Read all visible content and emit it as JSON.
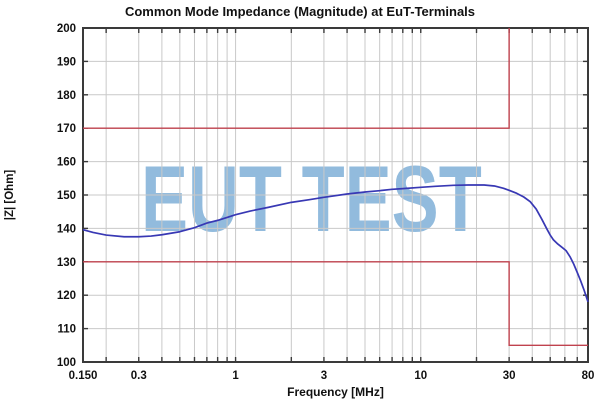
{
  "watermark": {
    "text": "EUT TEST",
    "color": "#7fb0d8"
  },
  "chart_data": {
    "type": "line",
    "title": "Common Mode Impedance (Magnitude) at EuT-Terminals",
    "xlabel": "Frequency [MHz]",
    "ylabel": "|Z| [Ohm]",
    "x_scale": "log",
    "xlim": [
      0.15,
      80
    ],
    "ylim": [
      100,
      200
    ],
    "grid": true,
    "x_tick_labels": [
      {
        "value": 0.15,
        "label": "0.150"
      },
      {
        "value": 0.3,
        "label": "0.3"
      },
      {
        "value": 1,
        "label": "1"
      },
      {
        "value": 3,
        "label": "3"
      },
      {
        "value": 10,
        "label": "10"
      },
      {
        "value": 30,
        "label": "30"
      },
      {
        "value": 80,
        "label": "80"
      }
    ],
    "y_ticks": [
      100,
      110,
      120,
      130,
      140,
      150,
      160,
      170,
      180,
      190,
      200
    ],
    "y_grid": [
      110,
      120,
      130,
      140,
      150,
      160,
      170,
      180,
      190
    ],
    "x_grid": [
      0.2,
      0.3,
      0.4,
      0.5,
      0.6,
      0.7,
      0.8,
      0.9,
      1,
      2,
      3,
      4,
      5,
      6,
      7,
      8,
      9,
      10,
      20,
      30,
      40,
      50,
      60,
      70,
      80
    ],
    "colors": {
      "grid": "#c9c9c9",
      "frame": "#3a3a3a",
      "curve": "#3838b4",
      "limit": "#c0424e"
    },
    "limit_lines": [
      {
        "name": "upper-limit-line",
        "color": "#c0424e",
        "points": [
          [
            0.15,
            170
          ],
          [
            30,
            170
          ],
          [
            30,
            200
          ]
        ]
      },
      {
        "name": "lower-limit-line",
        "color": "#c0424e",
        "points": [
          [
            0.15,
            130
          ],
          [
            30,
            130
          ],
          [
            30,
            105
          ],
          [
            80,
            105
          ]
        ]
      }
    ],
    "series": [
      {
        "name": "common-mode-impedance",
        "color": "#3838b4",
        "points": [
          [
            0.15,
            139.6
          ],
          [
            0.17,
            138.8
          ],
          [
            0.2,
            138.0
          ],
          [
            0.25,
            137.5
          ],
          [
            0.3,
            137.5
          ],
          [
            0.35,
            137.7
          ],
          [
            0.4,
            138.1
          ],
          [
            0.5,
            139.0
          ],
          [
            0.6,
            140.2
          ],
          [
            0.7,
            141.6
          ],
          [
            0.8,
            142.4
          ],
          [
            0.9,
            143.3
          ],
          [
            1.0,
            144.1
          ],
          [
            1.2,
            145.2
          ],
          [
            1.5,
            146.3
          ],
          [
            2.0,
            147.8
          ],
          [
            2.5,
            148.6
          ],
          [
            3.0,
            149.3
          ],
          [
            4.0,
            150.3
          ],
          [
            5.0,
            150.9
          ],
          [
            6.0,
            151.3
          ],
          [
            7.0,
            151.7
          ],
          [
            8.0,
            151.9
          ],
          [
            10,
            152.3
          ],
          [
            12,
            152.6
          ],
          [
            15,
            152.9
          ],
          [
            18,
            153.0
          ],
          [
            22,
            153.0
          ],
          [
            25,
            152.7
          ],
          [
            28,
            152.0
          ],
          [
            30,
            151.4
          ],
          [
            33,
            150.5
          ],
          [
            36,
            149.4
          ],
          [
            39,
            148.0
          ],
          [
            42,
            145.8
          ],
          [
            45,
            142.8
          ],
          [
            48,
            139.8
          ],
          [
            50,
            138.0
          ],
          [
            52,
            136.6
          ],
          [
            55,
            135.3
          ],
          [
            58,
            134.3
          ],
          [
            61,
            133.3
          ],
          [
            64,
            131.5
          ],
          [
            67,
            129.3
          ],
          [
            70,
            126.8
          ],
          [
            73,
            124.3
          ],
          [
            76,
            121.7
          ],
          [
            80,
            118.0
          ]
        ]
      }
    ]
  }
}
